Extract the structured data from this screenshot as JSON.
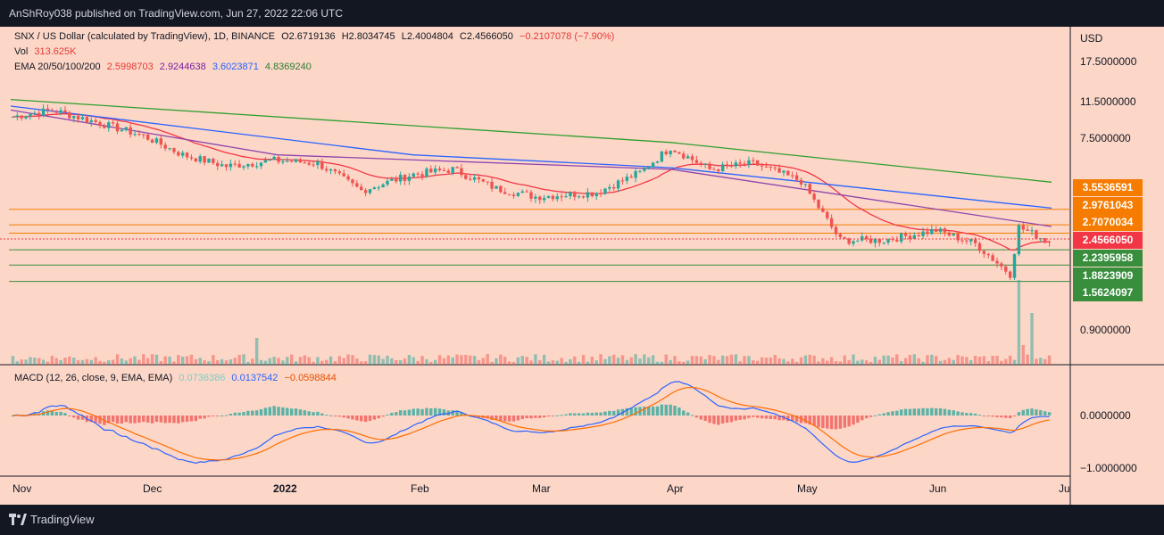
{
  "header": {
    "publisher": "AnShRoy038 published on TradingView.com, Jun 27, 2022 22:06 UTC"
  },
  "legend": {
    "symbol": "SNX / US Dollar (calculated by TradingView), 1D, BINANCE",
    "open": "O2.6719136",
    "high": "H2.8034745",
    "low": "L2.4004804",
    "close": "C2.4566050",
    "change": "−0.2107078 (−7.90%)",
    "vol_label": "Vol",
    "vol_value": "313.625K",
    "ema_label": "EMA 20/50/100/200",
    "ema20": "2.5998703",
    "ema50": "2.9244638",
    "ema100": "3.6023871",
    "ema200": "4.8369240"
  },
  "macd_legend": {
    "label": "MACD (12, 26, close, 9, EMA, EMA)",
    "hist": "0.0736386",
    "macd": "0.0137542",
    "signal": "−0.0598844"
  },
  "axis": {
    "currency": "USD",
    "price_ticks": [
      "17.5000000",
      "11.5000000",
      "7.5000000",
      "0.9000000"
    ],
    "macd_ticks": [
      "0.0000000",
      "−1.0000000"
    ],
    "time_ticks": [
      "Nov",
      "Dec",
      "2022",
      "Feb",
      "Mar",
      "Apr",
      "May",
      "Jun",
      "Ju"
    ]
  },
  "price_tags": [
    {
      "value": "3.5536591",
      "color": "#f57c00"
    },
    {
      "value": "2.9761043",
      "color": "#f57c00"
    },
    {
      "value": "2.7070034",
      "color": "#f57c00"
    },
    {
      "value": "2.4566050",
      "color": "#f23645"
    },
    {
      "value": "2.2395958",
      "color": "#388e3c"
    },
    {
      "value": "1.8823909",
      "color": "#388e3c"
    },
    {
      "value": "1.5624097",
      "color": "#388e3c"
    }
  ],
  "footer": {
    "brand": "TradingView"
  },
  "colors": {
    "background": "#fcd7c8",
    "up": "#26a69a",
    "down": "#ef5350",
    "ema20": "#f23645",
    "ema50": "#8e44ad",
    "ema100": "#2962ff",
    "ema200": "#2e9e2e",
    "resistance": "#f57c00",
    "support": "#388e3c",
    "macd_line": "#2962ff",
    "signal_line": "#ff6d00"
  },
  "chart_data": {
    "type": "candlestick",
    "title": "SNX / US Dollar, 1D, BINANCE",
    "x_range": [
      "2021-11-01",
      "2022-06-27"
    ],
    "y_scale": "log",
    "price_ohlc_last": {
      "open": 2.6719136,
      "high": 2.8034745,
      "low": 2.4004804,
      "close": 2.456605
    },
    "approx_closes": [
      {
        "x": "2021-11-01",
        "v": 10.2
      },
      {
        "x": "2021-11-10",
        "v": 11.0
      },
      {
        "x": "2021-11-20",
        "v": 9.6
      },
      {
        "x": "2021-12-01",
        "v": 8.2
      },
      {
        "x": "2021-12-10",
        "v": 6.6
      },
      {
        "x": "2021-12-20",
        "v": 5.8
      },
      {
        "x": "2021-12-31",
        "v": 6.2
      },
      {
        "x": "2022-01-10",
        "v": 6.0
      },
      {
        "x": "2022-01-20",
        "v": 4.4
      },
      {
        "x": "2022-02-01",
        "v": 5.3
      },
      {
        "x": "2022-02-10",
        "v": 5.6
      },
      {
        "x": "2022-02-20",
        "v": 4.5
      },
      {
        "x": "2022-03-01",
        "v": 4.1
      },
      {
        "x": "2022-03-15",
        "v": 4.3
      },
      {
        "x": "2022-03-25",
        "v": 5.4
      },
      {
        "x": "2022-04-01",
        "v": 7.2
      },
      {
        "x": "2022-04-10",
        "v": 5.6
      },
      {
        "x": "2022-04-20",
        "v": 6.0
      },
      {
        "x": "2022-05-01",
        "v": 4.9
      },
      {
        "x": "2022-05-10",
        "v": 2.5
      },
      {
        "x": "2022-05-20",
        "v": 2.5
      },
      {
        "x": "2022-06-01",
        "v": 2.8
      },
      {
        "x": "2022-06-10",
        "v": 2.4
      },
      {
        "x": "2022-06-18",
        "v": 1.7
      },
      {
        "x": "2022-06-20",
        "v": 2.9
      },
      {
        "x": "2022-06-27",
        "v": 2.46
      }
    ],
    "ema200_approx": [
      {
        "x": "2021-11-01",
        "v": 12.4
      },
      {
        "x": "2022-04-01",
        "v": 7.6
      },
      {
        "x": "2022-06-27",
        "v": 4.84
      }
    ],
    "ema100_approx": [
      {
        "x": "2021-11-01",
        "v": 11.5
      },
      {
        "x": "2022-02-01",
        "v": 6.6
      },
      {
        "x": "2022-04-01",
        "v": 5.7
      },
      {
        "x": "2022-06-27",
        "v": 3.6
      }
    ],
    "ema50_approx": [
      {
        "x": "2021-11-01",
        "v": 11.0
      },
      {
        "x": "2022-01-01",
        "v": 6.6
      },
      {
        "x": "2022-04-01",
        "v": 5.6
      },
      {
        "x": "2022-06-27",
        "v": 2.92
      }
    ],
    "horizontal_levels": [
      3.5536591,
      2.9761043,
      2.7070034,
      2.2395958,
      1.8823909,
      1.5624097
    ],
    "macd": {
      "macd": 0.0137542,
      "signal": -0.0598844,
      "hist": 0.0736386,
      "range": [
        -1.0,
        0.9
      ]
    }
  }
}
